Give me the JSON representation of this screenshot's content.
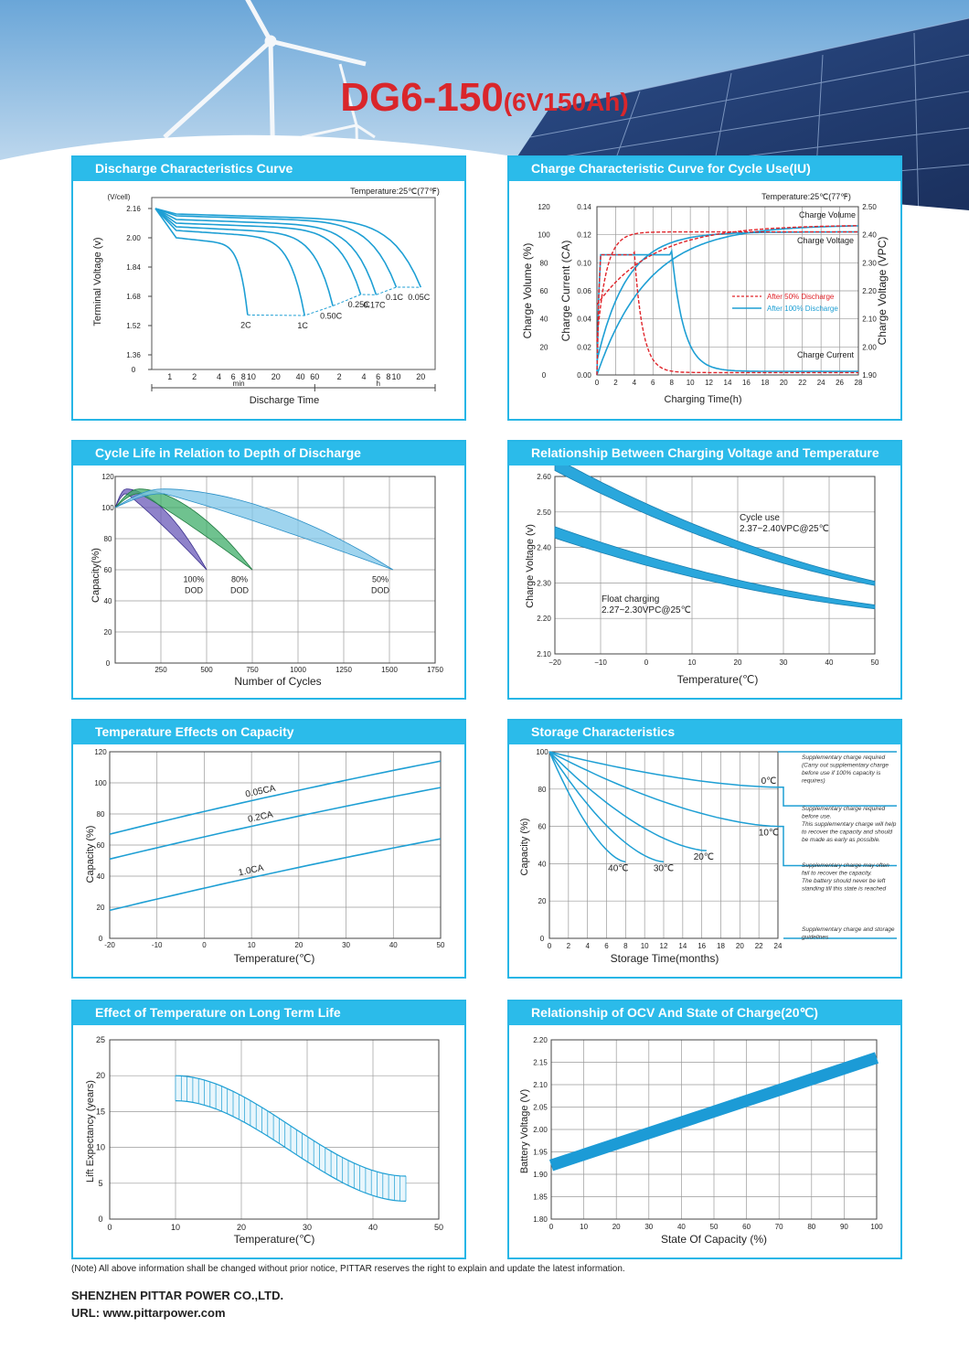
{
  "header": {
    "model": "DG6-150",
    "spec": "(6V150Ah)"
  },
  "colors": {
    "accent": "#2bbbea",
    "title_red": "#d9262b",
    "curve": "#1e9fd4",
    "charge_red": "#e0242a"
  },
  "charts": [
    {
      "id": "discharge",
      "title": "Discharge Characteristics Curve",
      "type": "line",
      "temperature_note": "Temperature:25℃(77℉)",
      "ylabel": "Terminal Voltage (v)",
      "yunit": "(V/cell)",
      "xlabel": "Discharge Time",
      "yticks": [
        "2.16",
        "2.00",
        "1.84",
        "1.68",
        "1.52",
        "1.36",
        "0"
      ],
      "xticks_min": [
        "1",
        "2",
        "4",
        "6",
        "8",
        "10",
        "20",
        "40",
        "60"
      ],
      "xticks_h": [
        "2",
        "4",
        "6",
        "8",
        "10",
        "20"
      ],
      "unit_min": "min",
      "unit_h": "h",
      "series": [
        {
          "name": "2C",
          "end_time_min": 9,
          "end_voltage": 1.6
        },
        {
          "name": "1C",
          "end_time_min": 45,
          "end_voltage": 1.6
        },
        {
          "name": "0.50C",
          "end_time_min": 100,
          "end_voltage": 1.65
        },
        {
          "name": "0.25C",
          "end_time_min": 220,
          "end_voltage": 1.71
        },
        {
          "name": "0.17C",
          "end_time_min": 340,
          "end_voltage": 1.71
        },
        {
          "name": "0.1C",
          "end_time_min": 600,
          "end_voltage": 1.75
        },
        {
          "name": "0.05C",
          "end_time_min": 1200,
          "end_voltage": 1.75
        }
      ]
    },
    {
      "id": "charge-cycle",
      "title": "Charge Characteristic Curve for Cycle Use(IU)",
      "type": "line",
      "temperature_note": "Temperature:25℃(77℉)",
      "xlabel": "Charging Time(h)",
      "ylabel_volume": "Charge Volume (%)",
      "ylabel_current": "Charge Current (CA)",
      "ylabel_voltage": "Charge Voltage (VPC)",
      "volume_ticks": [
        "120",
        "100",
        "80",
        "60",
        "40",
        "20",
        "0"
      ],
      "current_ticks": [
        "0.14",
        "0.12",
        "0.10",
        "0.06",
        "0.04",
        "0.02",
        "0.00"
      ],
      "voltage_ticks": [
        "2.50",
        "2.40",
        "2.30",
        "2.20",
        "2.10",
        "2.00",
        "1.90"
      ],
      "xticks": [
        "0",
        "2",
        "4",
        "6",
        "8",
        "10",
        "12",
        "14",
        "16",
        "18",
        "20",
        "22",
        "24",
        "26",
        "28"
      ],
      "labels": {
        "volume": "Charge Volume",
        "voltage": "Charge Voltage",
        "current": "Charge Current"
      },
      "legend": [
        "After 50% Discharge",
        "After 100% Discharge"
      ]
    },
    {
      "id": "cycle-life",
      "title": "Cycle Life in Relation to Depth of Discharge",
      "type": "area",
      "xlabel": "Number of Cycles",
      "ylabel": "Capacity(%)",
      "yticks": [
        "120",
        "100",
        "80",
        "60",
        "40",
        "20",
        "0"
      ],
      "xticks": [
        "250",
        "500",
        "750",
        "1000",
        "1250",
        "1500",
        "1750"
      ],
      "series": [
        {
          "name": "100% DOD",
          "line1": "100%",
          "line2": "DOD",
          "end_cycles": 500
        },
        {
          "name": "80% DOD",
          "line1": "80%",
          "line2": "DOD",
          "end_cycles": 750
        },
        {
          "name": "50% DOD",
          "line1": "50%",
          "line2": "DOD",
          "end_cycles": 1520
        }
      ]
    },
    {
      "id": "charge-voltage-temp",
      "title": "Relationship Between Charging Voltage and Temperature",
      "type": "area",
      "xlabel": "Temperature(℃)",
      "ylabel": "Charge Voltage (v)",
      "yticks": [
        "2.60",
        "2.50",
        "2.40",
        "2.30",
        "2.20",
        "2.10"
      ],
      "xticks": [
        "−20",
        "−10",
        "0",
        "10",
        "20",
        "30",
        "40",
        "50"
      ],
      "cycle_label": [
        "Cycle use",
        "2.37~2.40VPC@25℃"
      ],
      "float_label": [
        "Float charging",
        "2.27~2.30VPC@25℃"
      ]
    },
    {
      "id": "temp-capacity",
      "title": "Temperature Effects on Capacity",
      "type": "line",
      "xlabel": "Temperature(℃)",
      "ylabel": "Capacity (%)",
      "yticks": [
        "120",
        "100",
        "80",
        "60",
        "40",
        "20",
        "0"
      ],
      "xticks": [
        "-20",
        "-10",
        "0",
        "10",
        "20",
        "30",
        "40",
        "50"
      ],
      "series": [
        {
          "name": "0.05CA",
          "x": [
            -20,
            50
          ],
          "y": [
            67,
            114
          ]
        },
        {
          "name": "0.2CA",
          "x": [
            -20,
            50
          ],
          "y": [
            51,
            97
          ]
        },
        {
          "name": "1.0CA",
          "x": [
            -20,
            50
          ],
          "y": [
            18,
            64
          ]
        }
      ]
    },
    {
      "id": "storage",
      "title": "Storage Characteristics",
      "type": "line",
      "xlabel": "Storage Time(months)",
      "ylabel": "Capacity (%)",
      "yticks": [
        "100",
        "80",
        "60",
        "40",
        "20",
        "0"
      ],
      "xticks": [
        "0",
        "2",
        "4",
        "6",
        "8",
        "10",
        "12",
        "14",
        "16",
        "18",
        "20",
        "22",
        "24"
      ],
      "series": [
        {
          "name": "0℃",
          "end_month": 24,
          "end_capacity": 81
        },
        {
          "name": "10℃",
          "end_month": 24,
          "end_capacity": 60
        },
        {
          "name": "20℃",
          "end_month": 16.5,
          "end_capacity": 47
        },
        {
          "name": "30℃",
          "end_month": 12,
          "end_capacity": 41
        },
        {
          "name": "40℃",
          "end_month": 8,
          "end_capacity": 41
        }
      ],
      "notes": [
        [
          "Supplementary charge required",
          "(Carry out supplementary charge",
          "before use if 100% capacity is",
          "requires)"
        ],
        [
          "Supplementary charge required",
          "before use.",
          "This supplementary charge will help",
          "to recover the capacity and should",
          "be made  as early as possible."
        ],
        [
          "Supplementary charge may often",
          "fail to recover the capacity.",
          "The battery should never be left",
          "standing till this state is reached"
        ],
        [
          "Supplementary charge and storage",
          "guidelines"
        ]
      ]
    },
    {
      "id": "long-term-life",
      "title": "Effect of Temperature on Long Term Life",
      "type": "area",
      "xlabel": "Temperature(℃)",
      "ylabel": "Lift Expectancy  (years)",
      "yticks": [
        "25",
        "20",
        "15",
        "10",
        "5",
        "0"
      ],
      "xticks": [
        "0",
        "10",
        "20",
        "30",
        "40",
        "50"
      ],
      "band_x": [
        10,
        45
      ],
      "band_start_years": [
        16.5,
        20
      ],
      "band_end_years": [
        2.5,
        6
      ]
    },
    {
      "id": "ocv",
      "title": "Relationship of OCV And State of Charge(20℃)",
      "type": "line",
      "xlabel": "State Of Capacity (%)",
      "ylabel": "Battery Voltage (V)",
      "yticks": [
        "2.20",
        "2.15",
        "2.10",
        "2.05",
        "2.00",
        "1.95",
        "1.90",
        "1.85",
        "1.80"
      ],
      "xticks": [
        "0",
        "10",
        "20",
        "30",
        "40",
        "50",
        "60",
        "70",
        "80",
        "90",
        "100"
      ],
      "x": [
        0,
        100
      ],
      "y": [
        1.92,
        2.16
      ]
    }
  ],
  "footer": {
    "note": "(Note) All above information shall be changed without prior notice, PITTAR reserves the right to explain and update the latest information.",
    "company": "SHENZHEN PITTAR POWER CO.,LTD.",
    "url": "URL: www.pittarpower.com"
  }
}
